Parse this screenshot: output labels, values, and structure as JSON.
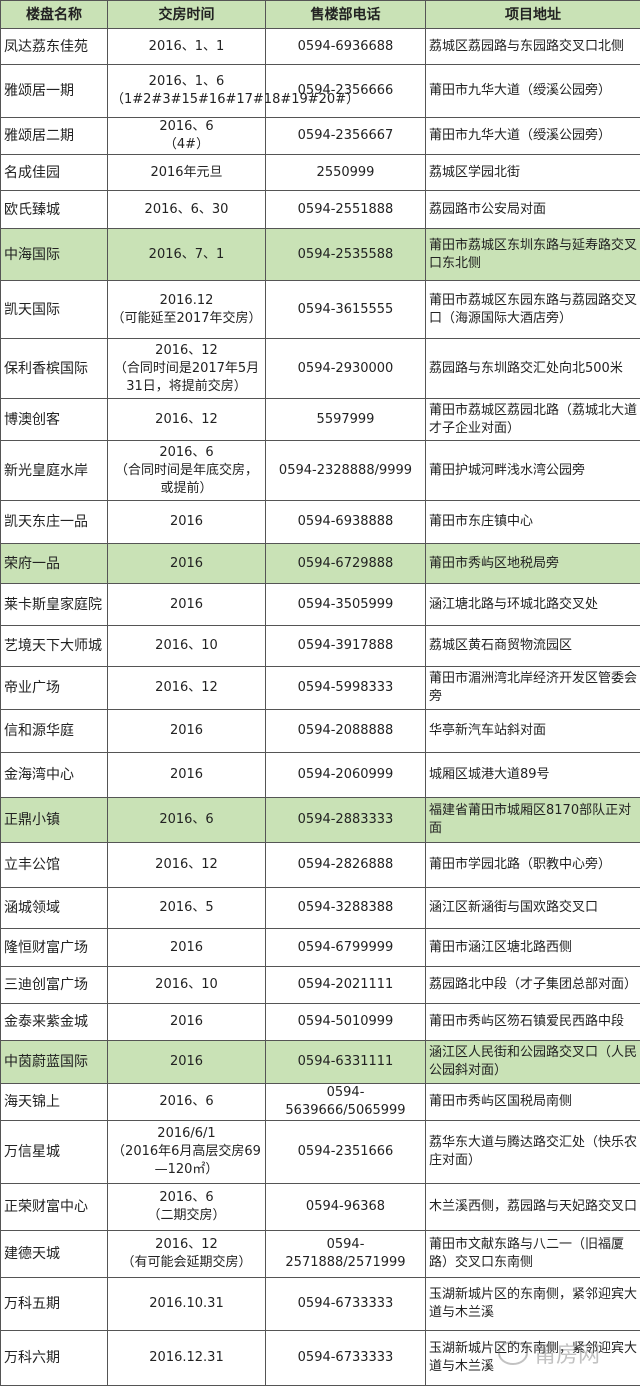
{
  "headers": [
    "楼盘名称",
    "交房时间",
    "售楼部电话",
    "项目地址"
  ],
  "colors": {
    "highlight": "#c9e2b6",
    "border": "#555555"
  },
  "rows": [
    {
      "name": "凤达荔东佳苑",
      "date": "2016、1、1",
      "phone": "0594-6936688",
      "address": "荔城区荔园路与东园路交叉口北侧",
      "highlight": false
    },
    {
      "name": "雅颂居一期",
      "date": "2016、1、6\n（1#2#3#15#16#17#18#19#20#）",
      "phone": "0594-2356666",
      "address": "莆田市九华大道（绶溪公园旁）",
      "highlight": false
    },
    {
      "name": "雅颂居二期",
      "date": "2016、6\n（4#）",
      "phone": "0594-2356667",
      "address": "莆田市九华大道（绶溪公园旁）",
      "highlight": false
    },
    {
      "name": "名成佳园",
      "date": "2016年元旦",
      "phone": "2550999",
      "address": "荔城区学园北街",
      "highlight": false
    },
    {
      "name": "欧氏臻城",
      "date": "2016、6、30",
      "phone": "0594-2551888",
      "address": "荔园路市公安局对面",
      "highlight": false
    },
    {
      "name": "中海国际",
      "date": "2016、7、1",
      "phone": "0594-2535588",
      "address": "莆田市荔城区东圳东路与延寿路交叉口东北侧",
      "highlight": true
    },
    {
      "name": "凯天国际",
      "date": "2016.12\n（可能延至2017年交房）",
      "phone": "0594-3615555",
      "address": "莆田市荔城区东园东路与荔园路交叉口（海源国际大酒店旁）",
      "highlight": false
    },
    {
      "name": "保利香槟国际",
      "date": "2016、12\n（合同时间是2017年5月31日，将提前交房）",
      "phone": "0594-2930000",
      "address": "荔园路与东圳路交汇处向北500米",
      "highlight": false
    },
    {
      "name": "博澳创客",
      "date": "2016、12",
      "phone": "5597999",
      "address": "莆田市荔城区荔园北路（荔城北大道才子企业对面）",
      "highlight": false
    },
    {
      "name": "新光皇庭水岸",
      "date": "2016、6\n（合同时间是年底交房，或提前）",
      "phone": "0594-2328888/9999",
      "address": "莆田护城河畔浅水湾公园旁",
      "highlight": false
    },
    {
      "name": "凯天东庄一品",
      "date": "2016",
      "phone": "0594-6938888",
      "address": "莆田市东庄镇中心",
      "highlight": false
    },
    {
      "name": "荣府一品",
      "date": "2016",
      "phone": "0594-6729888",
      "address": "莆田市秀屿区地税局旁",
      "highlight": true
    },
    {
      "name": "莱卡斯皇家庭院",
      "date": "2016",
      "phone": "0594-3505999",
      "address": "涵江塘北路与环城北路交叉处",
      "highlight": false
    },
    {
      "name": "艺境天下大师城",
      "date": "2016、10",
      "phone": "0594-3917888",
      "address": "荔城区黄石商贸物流园区",
      "highlight": false
    },
    {
      "name": "帝业广场",
      "date": "2016、12",
      "phone": "0594-5998333",
      "address": "莆田市湄洲湾北岸经济开发区管委会旁",
      "highlight": false
    },
    {
      "name": "信和源华庭",
      "date": "2016",
      "phone": "0594-2088888",
      "address": "华亭新汽车站斜对面",
      "highlight": false
    },
    {
      "name": "金海湾中心",
      "date": "2016",
      "phone": "0594-2060999",
      "address": "城厢区城港大道89号",
      "highlight": false
    },
    {
      "name": "正鼎小镇",
      "date": "2016、6",
      "phone": "0594-2883333",
      "address": "福建省莆田市城厢区8170部队正对面",
      "highlight": true
    },
    {
      "name": "立丰公馆",
      "date": "2016、12",
      "phone": "0594-2826888",
      "address": "莆田市学园北路（职教中心旁）",
      "highlight": false
    },
    {
      "name": "涵城领域",
      "date": "2016、5",
      "phone": "0594-3288388",
      "address": "涵江区新涵街与国欢路交叉口",
      "highlight": false
    },
    {
      "name": "隆恒财富广场",
      "date": "2016",
      "phone": "0594-6799999",
      "address": "莆田市涵江区塘北路西侧",
      "highlight": false
    },
    {
      "name": "三迪创富广场",
      "date": "2016、10",
      "phone": "0594-2021111",
      "address": "荔园路北中段（才子集团总部对面）",
      "highlight": false
    },
    {
      "name": "金泰来紫金城",
      "date": "2016",
      "phone": "0594-5010999",
      "address": "莆田市秀屿区笏石镇爱民西路中段",
      "highlight": false
    },
    {
      "name": "中茵蔚蓝国际",
      "date": "2016",
      "phone": "0594-6331111",
      "address": "涵江区人民街和公园路交叉口（人民公园斜对面）",
      "highlight": true
    },
    {
      "name": "海天锦上",
      "date": "2016、6",
      "phone": "0594-5639666/5065999",
      "address": "莆田市秀屿区国税局南侧",
      "highlight": false
    },
    {
      "name": "万信星城",
      "date": "2016/6/1\n（2016年6月高层交房69—120㎡）",
      "phone": "0594-2351666",
      "address": "荔华东大道与腾达路交汇处（快乐农庄对面）",
      "highlight": false
    },
    {
      "name": "正荣财富中心",
      "date": "2016、6\n（二期交房）",
      "phone": "0594-96368",
      "address": "木兰溪西侧，荔园路与天妃路交叉口",
      "highlight": false
    },
    {
      "name": "建德天城",
      "date": "2016、12\n（有可能会延期交房）",
      "phone": "0594-2571888/2571999",
      "address": "莆田市文献东路与八二一（旧福厦路）交叉口东南侧",
      "highlight": false
    },
    {
      "name": "万科五期",
      "date": "2016.10.31",
      "phone": "0594-6733333",
      "address": "玉湖新城片区的东南侧，紧邻迎宾大道与木兰溪",
      "highlight": false
    },
    {
      "name": "万科六期",
      "date": "2016.12.31",
      "phone": "0594-6733333",
      "address": "玉湖新城片区的东南侧，紧邻迎宾大道与木兰溪",
      "highlight": false
    }
  ],
  "watermark": "莆房网"
}
